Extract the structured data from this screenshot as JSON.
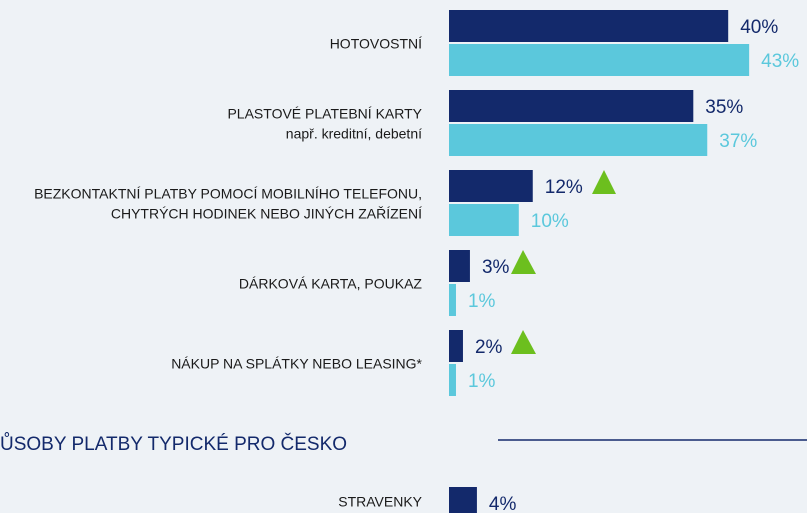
{
  "chart_data": [
    {
      "type": "bar",
      "orientation": "horizontal",
      "categories": [
        [
          "HOTOVOSTNÍ"
        ],
        [
          "PLASTOVÉ PLATEBNÍ KARTY",
          "např. kreditní, debetní"
        ],
        [
          "BEZKONTAKTNÍ PLATBY POMOCÍ MOBILNÍHO TELEFONU,",
          "CHYTRÝCH HODINEK NEBO JINÝCH ZAŘÍZENÍ"
        ],
        [
          "DÁRKOVÁ KARTA, POUKAZ"
        ],
        [
          "NÁKUP NA SPLÁTKY NEBO LEASING*"
        ]
      ],
      "series": [
        {
          "color": "#13296b",
          "values": [
            40,
            35,
            12,
            3,
            2
          ],
          "value_labels": [
            "40%",
            "35%",
            "12%",
            "3%",
            "2%"
          ]
        },
        {
          "color": "#5bc8dc",
          "values": [
            43,
            37,
            10,
            1,
            1
          ],
          "value_labels": [
            "43%",
            "37%",
            "10%",
            "1%",
            "1%"
          ]
        }
      ],
      "xlim": [
        0,
        50
      ]
    },
    {
      "type": "bar",
      "orientation": "horizontal",
      "title": "ŮSOBY PLATBY TYPICKÉ PRO ČESKO",
      "categories": [
        [
          "STRAVENKY"
        ]
      ],
      "series": [
        {
          "color": "#13296b",
          "values": [
            4
          ],
          "value_labels": [
            "4%"
          ]
        }
      ],
      "xlim": [
        0,
        50
      ]
    }
  ]
}
